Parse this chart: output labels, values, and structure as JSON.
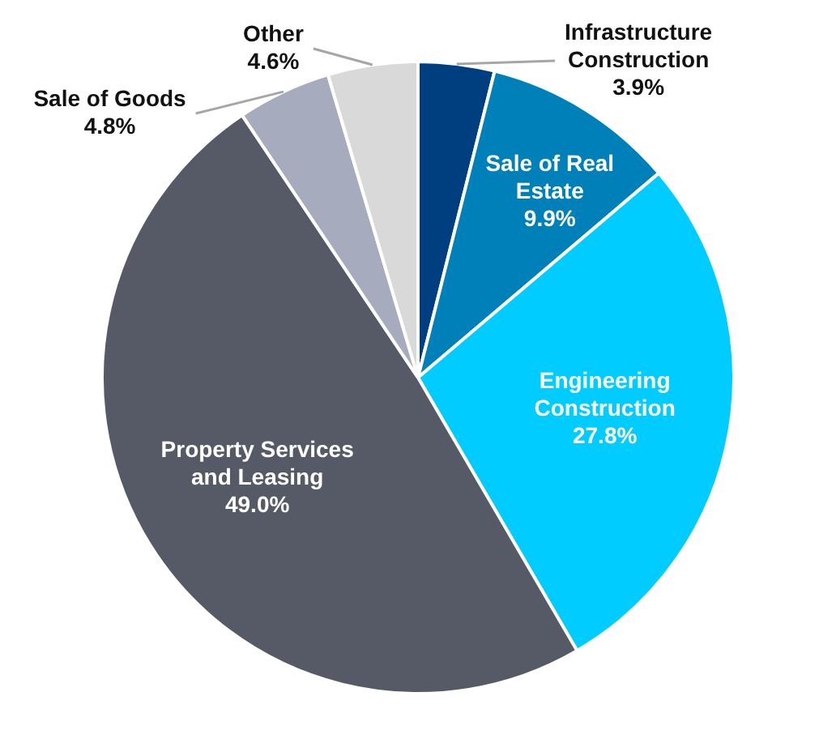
{
  "chart_data": {
    "type": "pie",
    "categories": [
      "Infrastructure Construction",
      "Sale of Real Estate",
      "Engineering Construction",
      "Property Services and Leasing",
      "Sale of Goods",
      "Other"
    ],
    "values": [
      3.9,
      9.9,
      27.8,
      49.0,
      4.8,
      4.6
    ],
    "value_labels": [
      "3.9%",
      "9.9%",
      "27.8%",
      "49.0%",
      "4.8%",
      "4.6%"
    ],
    "colors": [
      "#003f7f",
      "#0080b8",
      "#00ccff",
      "#555a66",
      "#a6abbd",
      "#d9d9d9"
    ],
    "legend": false
  }
}
